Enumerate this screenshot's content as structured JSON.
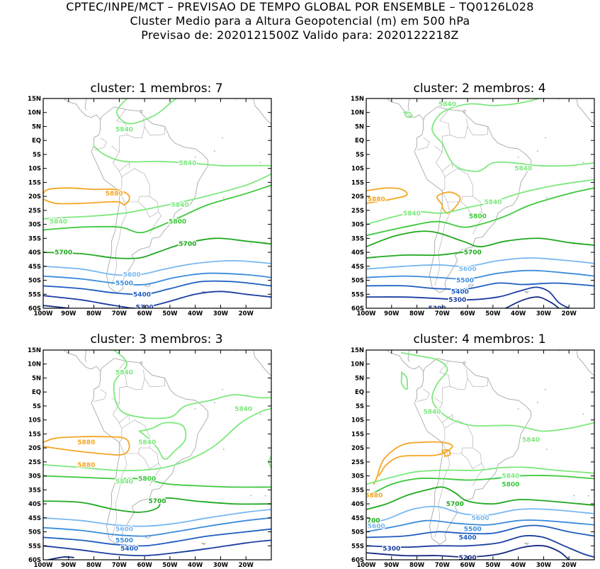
{
  "header": {
    "line1": "CPTEC/INPE/MCT – PREVISAO DE TEMPO GLOBAL POR ENSEMBLE – TQ0126L028",
    "line2": "Cluster Medio para a Altura Geopotencial (m) em 500 hPa",
    "line3": "Previsao de: 2020121500Z    Valido para: 2020122218Z"
  },
  "axes": {
    "lat_labels": [
      "15N",
      "10N",
      "5N",
      "EQ",
      "5S",
      "10S",
      "15S",
      "20S",
      "25S",
      "30S",
      "35S",
      "40S",
      "45S",
      "50S",
      "55S",
      "60S"
    ],
    "lon_labels": [
      "100W",
      "90W",
      "80W",
      "70W",
      "60W",
      "50W",
      "40W",
      "30W",
      "20W"
    ]
  },
  "colors": {
    "c5880": "#f5a623",
    "c5840": "#7ee87e",
    "c5800": "#3cc83c",
    "c5700": "#1fa81f",
    "c5600": "#78b8f0",
    "c5500": "#3c8cdc",
    "c5400": "#1e5cc0",
    "c5300": "#1a3ea0",
    "c5200": "#142a80",
    "coast": "#a8a8a8"
  },
  "panels": [
    {
      "title": "cluster: 1   membros: 7",
      "labels": [
        {
          "text": "5840",
          "lon": -68,
          "lat": 4
        },
        {
          "text": "5840",
          "lon": -43,
          "lat": -8
        },
        {
          "text": "5880",
          "lon": -72,
          "lat": -19
        },
        {
          "text": "5840",
          "lon": -46,
          "lat": -23
        },
        {
          "text": "5840",
          "lon": -94,
          "lat": -29
        },
        {
          "text": "5800",
          "lon": -47,
          "lat": -29
        },
        {
          "text": "5700",
          "lon": -43,
          "lat": -37
        },
        {
          "text": "5700",
          "lon": -92,
          "lat": -40
        },
        {
          "text": "5600",
          "lon": -65,
          "lat": -48
        },
        {
          "text": "5500",
          "lon": -68,
          "lat": -51
        },
        {
          "text": "5400",
          "lon": -61,
          "lat": -55
        },
        {
          "text": "5300",
          "lon": -60,
          "lat": -59.6
        }
      ]
    },
    {
      "title": "cluster: 2   membros: 4",
      "labels": [
        {
          "text": "5840",
          "lon": -68,
          "lat": 13
        },
        {
          "text": "5840",
          "lon": -38,
          "lat": -10
        },
        {
          "text": "5880",
          "lon": -96,
          "lat": -21
        },
        {
          "text": "5840",
          "lon": -50,
          "lat": -22
        },
        {
          "text": "5840",
          "lon": -82,
          "lat": -26
        },
        {
          "text": "5800",
          "lon": -56,
          "lat": -27
        },
        {
          "text": "5700",
          "lon": -58,
          "lat": -40
        },
        {
          "text": "5600",
          "lon": -60,
          "lat": -46
        },
        {
          "text": "5500",
          "lon": -61,
          "lat": -50
        },
        {
          "text": "5400",
          "lon": -63,
          "lat": -54
        },
        {
          "text": "5300",
          "lon": -64,
          "lat": -57
        },
        {
          "text": "5300",
          "lon": -72,
          "lat": -60
        }
      ]
    },
    {
      "title": "cluster: 3   membros: 3",
      "labels": [
        {
          "text": "5840",
          "lon": -68,
          "lat": 7
        },
        {
          "text": "5840",
          "lon": -21,
          "lat": -6
        },
        {
          "text": "5840",
          "lon": -59,
          "lat": -18
        },
        {
          "text": "5880",
          "lon": -83,
          "lat": -18
        },
        {
          "text": "5880",
          "lon": -83,
          "lat": -26
        },
        {
          "text": "5840",
          "lon": -68,
          "lat": -32
        },
        {
          "text": "5800",
          "lon": -59,
          "lat": -31
        },
        {
          "text": "5700",
          "lon": -55,
          "lat": -39
        },
        {
          "text": "5600",
          "lon": -68,
          "lat": -49
        },
        {
          "text": "5500",
          "lon": -68,
          "lat": -53
        },
        {
          "text": "5400",
          "lon": -66,
          "lat": -56
        }
      ]
    },
    {
      "title": "cluster: 4   membros: 1",
      "labels": [
        {
          "text": "5840",
          "lon": -74,
          "lat": -7
        },
        {
          "text": "5840",
          "lon": -35,
          "lat": -17
        },
        {
          "text": "5840",
          "lon": -43,
          "lat": -30
        },
        {
          "text": "5800",
          "lon": -43,
          "lat": -33
        },
        {
          "text": "5880",
          "lon": -97,
          "lat": -37
        },
        {
          "text": "5700",
          "lon": -65,
          "lat": -40
        },
        {
          "text": "5600",
          "lon": -55,
          "lat": -45
        },
        {
          "text": "5700",
          "lon": -98,
          "lat": -46
        },
        {
          "text": "5600",
          "lon": -96,
          "lat": -48
        },
        {
          "text": "5500",
          "lon": -58,
          "lat": -49
        },
        {
          "text": "5400",
          "lon": -60,
          "lat": -52
        },
        {
          "text": "5300",
          "lon": -90,
          "lat": -56
        },
        {
          "text": "5200",
          "lon": -60,
          "lat": -59.2
        }
      ]
    }
  ]
}
